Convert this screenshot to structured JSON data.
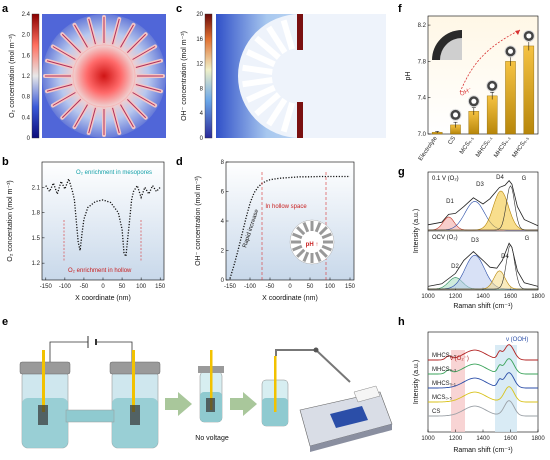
{
  "panels": {
    "a": {
      "label": "a",
      "ylabel": "O₂ concentration (mol m⁻³)",
      "ticks": [
        "0",
        "0.4",
        "0.8",
        "1.2",
        "1.6",
        "2.0",
        "2.4"
      ],
      "colors": {
        "low": "#0b0b7a",
        "mid": "#e8e8e8",
        "high": "#c21010"
      }
    },
    "c": {
      "label": "c",
      "ylabel": "OH⁻ concentration (mol m⁻³)",
      "ticks": [
        "0",
        "4",
        "8",
        "12",
        "16",
        "20"
      ],
      "colors": {
        "low": "#2a2a9a",
        "mid": "#f0f0c8",
        "high": "#8a1010"
      }
    },
    "b": {
      "label": "b",
      "ylabel": "O₂ concentation (mol m⁻³)",
      "xlabel": "X coordinate (nm)",
      "annotation_top": "O₂ enrichment in mesopores",
      "annotation_bottom": "O₂ enrichment in hollow"
    },
    "d": {
      "label": "d",
      "ylabel": "OH⁻ concentration (mol m⁻³)",
      "xlabel": "X coordinate (nm)",
      "annotation_space": "In hollow space",
      "annotation_increase": "Rapid increase",
      "annotation_ph": "pH ↑"
    },
    "e": {
      "label": "e",
      "caption": "No voltage"
    },
    "f": {
      "label": "f",
      "ylabel": "pH",
      "annotation": "OH⁻"
    },
    "g": {
      "label": "g",
      "ylabel": "Intensity (a.u.)",
      "xlabel": "Raman shift (cm⁻¹)",
      "top_label": "0.1 V (O₂)",
      "bottom_label": "OCV (O₂)",
      "peaks_top": [
        "D1",
        "D3",
        "D4",
        "G"
      ],
      "peaks_bottom": [
        "D2",
        "D3",
        "D4",
        "G"
      ]
    },
    "h": {
      "label": "h",
      "ylabel": "Intensity (a.u.)",
      "xlabel": "Raman shift (cm⁻¹)",
      "ann_o2": "ν (O₂⁻)",
      "ann_ooh": "ν (OOH)",
      "series": [
        {
          "name": "MHCS₀.₅",
          "color": "#b22222"
        },
        {
          "name": "MHCS₀.₃",
          "color": "#3aa35a"
        },
        {
          "name": "MHCS₀.₁",
          "color": "#2b4ea8"
        },
        {
          "name": "MCS₀.₅",
          "color": "#d8c21a"
        },
        {
          "name": "CS",
          "color": "#9aa0a6"
        }
      ]
    }
  },
  "chart_data": [
    {
      "type": "line",
      "panel": "b",
      "xlabel": "X coordinate (nm)",
      "ylabel": "O₂ concentation (mol m⁻³)",
      "xlim": [
        -160,
        160
      ],
      "ylim": [
        1.0,
        2.4
      ],
      "xticks": [
        -150,
        -100,
        -50,
        0,
        50,
        100,
        150
      ],
      "yticks": [
        1.2,
        1.5,
        1.8,
        2.1
      ],
      "series": [
        {
          "x": [
            -150,
            -140,
            -130,
            -120,
            -110,
            -100,
            -90,
            -80,
            -75,
            -70,
            -65,
            -60,
            -55,
            -50,
            -40,
            -20,
            0,
            20,
            40,
            50,
            55,
            60,
            65,
            70,
            75,
            80,
            90,
            100,
            110,
            120,
            130,
            140,
            150
          ],
          "y": [
            2.12,
            2.05,
            2.15,
            2.02,
            2.17,
            2.08,
            2.2,
            2.05,
            1.95,
            1.7,
            1.45,
            1.35,
            1.55,
            1.72,
            1.86,
            1.93,
            1.95,
            1.92,
            1.8,
            1.6,
            1.32,
            1.28,
            1.5,
            1.72,
            1.95,
            2.05,
            2.12,
            1.98,
            2.1,
            2.02,
            2.12,
            2.05,
            2.1
          ]
        }
      ]
    },
    {
      "type": "line",
      "panel": "d",
      "xlabel": "X coordinate (nm)",
      "ylabel": "OH⁻ concentration (mol m⁻³)",
      "xlim": [
        -160,
        160
      ],
      "ylim": [
        0,
        8
      ],
      "xticks": [
        -150,
        -100,
        -50,
        0,
        50,
        100,
        150
      ],
      "yticks": [
        0,
        2,
        4,
        6,
        8
      ],
      "series": [
        {
          "x": [
            -150,
            -140,
            -130,
            -120,
            -110,
            -100,
            -90,
            -80,
            -70,
            -60,
            -50,
            -25,
            0,
            25,
            50,
            75,
            100,
            125,
            150
          ],
          "y": [
            0.1,
            1.0,
            2.0,
            3.1,
            4.2,
            5.2,
            5.9,
            6.3,
            6.55,
            6.7,
            6.8,
            6.9,
            6.95,
            7.0,
            7.0,
            7.02,
            7.02,
            7.02,
            7.02
          ]
        }
      ]
    },
    {
      "type": "bar",
      "panel": "f",
      "ylabel": "pH",
      "categories": [
        "Electrolyte",
        "CS",
        "MCS₀.₅",
        "MHCS₀.₁",
        "MHCS₀.₃",
        "MHCS₀.₅"
      ],
      "values": [
        7.02,
        7.1,
        7.25,
        7.42,
        7.8,
        7.97
      ],
      "errors": [
        0.01,
        0.03,
        0.04,
        0.04,
        0.05,
        0.05
      ],
      "ylim": [
        7.0,
        8.3
      ],
      "yticks": [
        7.0,
        7.4,
        7.8,
        8.2
      ]
    },
    {
      "type": "line",
      "panel": "g",
      "xlabel": "Raman shift (cm⁻¹)",
      "ylabel": "Intensity (a.u.)",
      "xlim": [
        1000,
        1800
      ],
      "xticks": [
        1000,
        1200,
        1400,
        1600,
        1800
      ],
      "series": [
        {
          "name": "0.1 V (O₂)",
          "x": [
            1000,
            1100,
            1150,
            1200,
            1260,
            1330,
            1400,
            1450,
            1520,
            1560,
            1590,
            1610,
            1650,
            1700,
            1800
          ],
          "y": [
            0.1,
            0.15,
            0.3,
            0.32,
            0.45,
            0.62,
            0.5,
            0.6,
            0.82,
            0.86,
            0.95,
            0.88,
            0.45,
            0.2,
            0.08
          ]
        },
        {
          "name": "OCV (O₂)",
          "x": [
            1000,
            1100,
            1200,
            1260,
            1330,
            1400,
            1450,
            1500,
            1540,
            1590,
            1610,
            1650,
            1700,
            1800
          ],
          "y": [
            0.05,
            0.1,
            0.3,
            0.55,
            0.72,
            0.55,
            0.42,
            0.4,
            0.55,
            0.88,
            0.8,
            0.35,
            0.12,
            0.05
          ]
        }
      ]
    },
    {
      "type": "line",
      "panel": "h",
      "xlabel": "Raman shift (cm⁻¹)",
      "ylabel": "Intensity (a.u.)",
      "xlim": [
        1000,
        1800
      ],
      "xticks": [
        1000,
        1200,
        1400,
        1600,
        1800
      ],
      "series": [
        {
          "name": "MHCS₀.₅"
        },
        {
          "name": "MHCS₀.₃"
        },
        {
          "name": "MHCS₀.₁"
        },
        {
          "name": "MCS₀.₅"
        },
        {
          "name": "CS"
        }
      ]
    }
  ]
}
